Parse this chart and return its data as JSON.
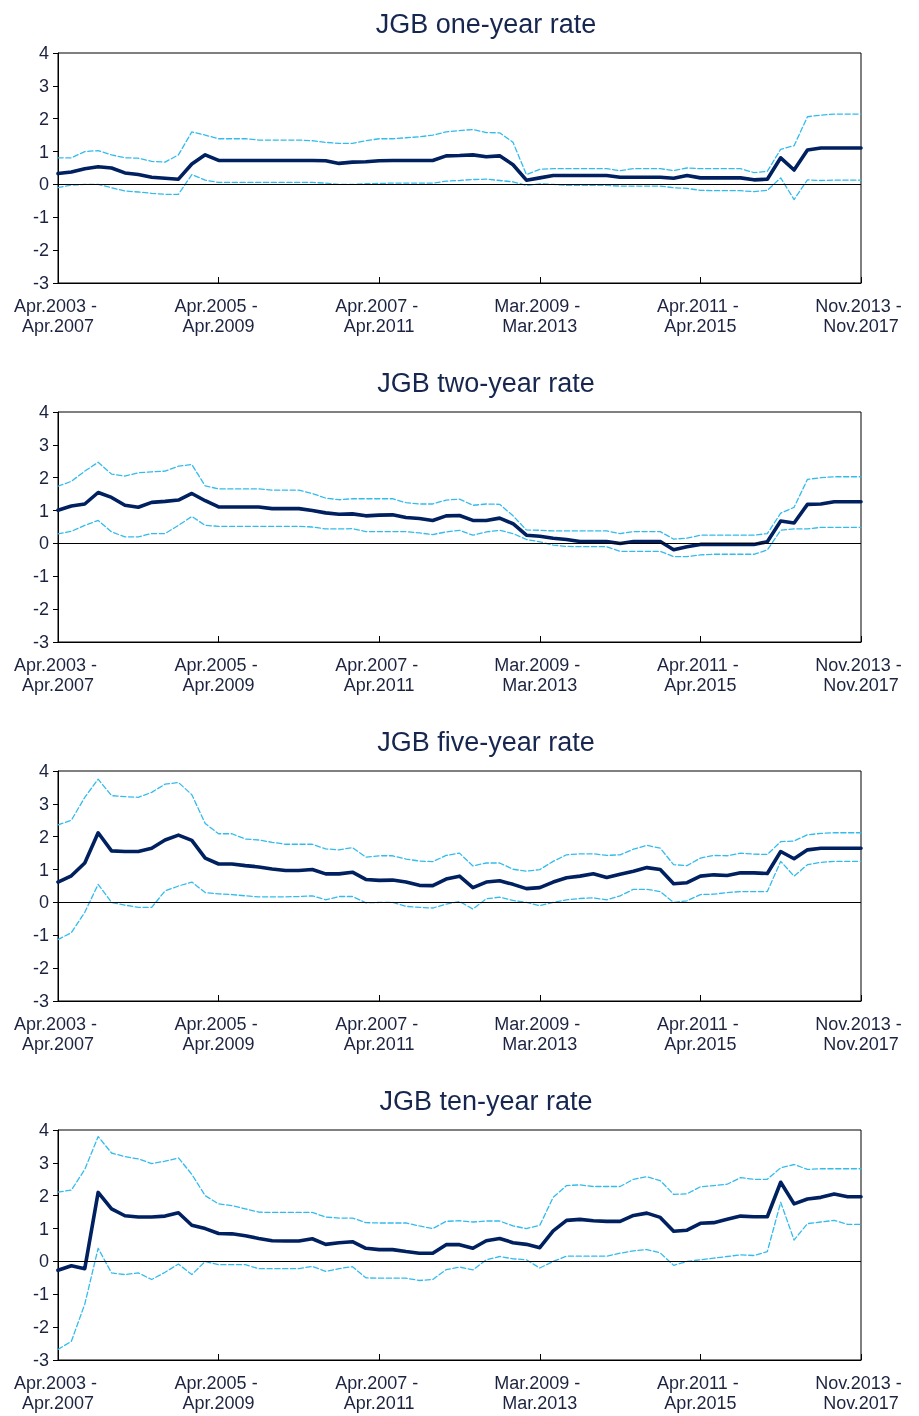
{
  "chart_data": [
    {
      "type": "line",
      "title": "JGB one-year rate",
      "categories": [
        "Apr.2003 - Apr.2007",
        null,
        null,
        null,
        null,
        null,
        null,
        null,
        null,
        null,
        null,
        null,
        "Apr.2005 - Apr.2009",
        null,
        null,
        null,
        null,
        null,
        null,
        null,
        null,
        null,
        null,
        null,
        "Apr.2007 - Apr.2011",
        null,
        null,
        null,
        null,
        null,
        null,
        null,
        null,
        null,
        null,
        null,
        "Mar.2009 - Mar.2013",
        null,
        null,
        null,
        null,
        null,
        null,
        null,
        null,
        null,
        null,
        null,
        "Apr.2011 - Apr.2015",
        null,
        null,
        null,
        null,
        null,
        null,
        null,
        null,
        null,
        null,
        null,
        "Nov.2013 - Nov.2017"
      ],
      "ylim": [
        -3,
        4
      ],
      "yticks": [
        -3,
        -2,
        -1,
        0,
        1,
        2,
        3,
        4
      ],
      "grid": false,
      "marker": "none",
      "line_style": "solid",
      "ref_lines": [
        {
          "axis": "y",
          "value": 0,
          "color": "#000000"
        }
      ],
      "series": [
        {
          "color": "#002060",
          "values": [
            0.33,
            0.38,
            0.48,
            0.54,
            0.5,
            0.35,
            0.3,
            0.22,
            0.19,
            0.16,
            0.62,
            0.9,
            0.73,
            0.73,
            0.73,
            0.73,
            0.73,
            0.73,
            0.73,
            0.73,
            0.72,
            0.64,
            0.68,
            0.69,
            0.72,
            0.73,
            0.73,
            0.73,
            0.73,
            0.87,
            0.88,
            0.9,
            0.84,
            0.87,
            0.6,
            0.13,
            0.2,
            0.27,
            0.27,
            0.27,
            0.27,
            0.27,
            0.22,
            0.22,
            0.22,
            0.22,
            0.19,
            0.27,
            0.2,
            0.2,
            0.2,
            0.2,
            0.14,
            0.16,
            0.81,
            0.44,
            1.05,
            1.11,
            1.11,
            1.11,
            1.11
          ]
        },
        {
          "color": "#33bbee",
          "line_style": "dashed",
          "values": [
            0.81,
            0.81,
            1.0,
            1.03,
            0.9,
            0.81,
            0.8,
            0.7,
            0.68,
            0.9,
            1.6,
            1.5,
            1.39,
            1.39,
            1.39,
            1.35,
            1.35,
            1.35,
            1.35,
            1.33,
            1.28,
            1.25,
            1.25,
            1.33,
            1.39,
            1.39,
            1.42,
            1.45,
            1.5,
            1.6,
            1.64,
            1.67,
            1.58,
            1.57,
            1.28,
            0.3,
            0.46,
            0.48,
            0.48,
            0.48,
            0.48,
            0.48,
            0.42,
            0.48,
            0.48,
            0.48,
            0.42,
            0.5,
            0.48,
            0.48,
            0.48,
            0.48,
            0.36,
            0.4,
            1.07,
            1.18,
            2.06,
            2.11,
            2.14,
            2.14,
            2.14
          ]
        },
        {
          "color": "#33bbee",
          "line_style": "dashed",
          "values": [
            -0.1,
            -0.02,
            0,
            0,
            -0.1,
            -0.2,
            -0.23,
            -0.27,
            -0.3,
            -0.3,
            0.3,
            0.13,
            0.06,
            0.06,
            0.06,
            0.06,
            0.06,
            0.06,
            0.06,
            0.06,
            0.04,
            0,
            0,
            0.02,
            0.03,
            0.04,
            0.04,
            0.04,
            0.04,
            0.1,
            0.12,
            0.15,
            0.16,
            0.12,
            0.08,
            -0.03,
            0.02,
            0,
            -0.03,
            -0.03,
            -0.03,
            -0.03,
            -0.05,
            -0.05,
            -0.05,
            -0.05,
            -0.1,
            -0.12,
            -0.18,
            -0.19,
            -0.19,
            -0.19,
            -0.22,
            -0.18,
            0.2,
            -0.46,
            0.14,
            0.12,
            0.13,
            0.13,
            0.13
          ]
        }
      ]
    },
    {
      "type": "line",
      "title": "JGB two-year rate",
      "categories": [
        "Apr.2003 - Apr.2007",
        null,
        null,
        null,
        null,
        null,
        null,
        null,
        null,
        null,
        null,
        null,
        "Apr.2005 - Apr.2009",
        null,
        null,
        null,
        null,
        null,
        null,
        null,
        null,
        null,
        null,
        null,
        "Apr.2007 - Apr.2011",
        null,
        null,
        null,
        null,
        null,
        null,
        null,
        null,
        null,
        null,
        null,
        "Mar.2009 - Mar.2013",
        null,
        null,
        null,
        null,
        null,
        null,
        null,
        null,
        null,
        null,
        null,
        "Apr.2011 - Apr.2015",
        null,
        null,
        null,
        null,
        null,
        null,
        null,
        null,
        null,
        null,
        null,
        "Nov.2013 - Nov.2017"
      ],
      "ylim": [
        -3,
        4
      ],
      "yticks": [
        -3,
        -2,
        -1,
        0,
        1,
        2,
        3,
        4
      ],
      "grid": false,
      "marker": "none",
      "line_style": "solid",
      "ref_lines": [
        {
          "axis": "y",
          "value": 0,
          "color": "#000000"
        }
      ],
      "series": [
        {
          "color": "#002060",
          "values": [
            1.01,
            1.14,
            1.2,
            1.55,
            1.4,
            1.16,
            1.1,
            1.25,
            1.28,
            1.32,
            1.52,
            1.3,
            1.11,
            1.11,
            1.11,
            1.11,
            1.06,
            1.06,
            1.06,
            1.0,
            0.93,
            0.89,
            0.9,
            0.84,
            0.86,
            0.87,
            0.79,
            0.76,
            0.7,
            0.84,
            0.85,
            0.7,
            0.7,
            0.77,
            0.6,
            0.25,
            0.22,
            0.16,
            0.12,
            0.06,
            0.06,
            0.06,
            0,
            0.06,
            0.06,
            0.06,
            -0.19,
            -0.1,
            -0.03,
            -0.03,
            -0.03,
            -0.03,
            -0.03,
            0.05,
            0.68,
            0.62,
            1.19,
            1.2,
            1.27,
            1.27,
            1.27
          ]
        },
        {
          "color": "#33bbee",
          "line_style": "dashed",
          "values": [
            1.74,
            1.89,
            2.2,
            2.47,
            2.11,
            2.05,
            2.15,
            2.18,
            2.2,
            2.35,
            2.4,
            1.75,
            1.66,
            1.66,
            1.66,
            1.66,
            1.62,
            1.62,
            1.62,
            1.52,
            1.38,
            1.33,
            1.36,
            1.36,
            1.36,
            1.36,
            1.24,
            1.2,
            1.2,
            1.32,
            1.35,
            1.16,
            1.2,
            1.19,
            0.84,
            0.41,
            0.4,
            0.38,
            0.38,
            0.38,
            0.38,
            0.38,
            0.3,
            0.36,
            0.36,
            0.36,
            0.13,
            0.16,
            0.25,
            0.25,
            0.25,
            0.25,
            0.25,
            0.3,
            0.92,
            1.1,
            1.95,
            2.0,
            2.03,
            2.03,
            2.03
          ]
        },
        {
          "color": "#33bbee",
          "line_style": "dashed",
          "values": [
            0.29,
            0.37,
            0.55,
            0.7,
            0.35,
            0.2,
            0.2,
            0.3,
            0.3,
            0.55,
            0.82,
            0.55,
            0.52,
            0.52,
            0.52,
            0.52,
            0.52,
            0.52,
            0.52,
            0.5,
            0.44,
            0.44,
            0.45,
            0.36,
            0.36,
            0.36,
            0.36,
            0.32,
            0.27,
            0.35,
            0.4,
            0.25,
            0.35,
            0.4,
            0.3,
            0.12,
            0.05,
            -0.05,
            -0.09,
            -0.1,
            -0.1,
            -0.1,
            -0.24,
            -0.24,
            -0.24,
            -0.24,
            -0.4,
            -0.4,
            -0.35,
            -0.33,
            -0.33,
            -0.33,
            -0.33,
            -0.2,
            0.4,
            0.44,
            0.44,
            0.49,
            0.49,
            0.49,
            0.49
          ]
        }
      ]
    },
    {
      "type": "line",
      "title": "JGB five-year rate",
      "categories": [
        "Apr.2003 - Apr.2007",
        null,
        null,
        null,
        null,
        null,
        null,
        null,
        null,
        null,
        null,
        null,
        "Apr.2005 - Apr.2009",
        null,
        null,
        null,
        null,
        null,
        null,
        null,
        null,
        null,
        null,
        null,
        "Apr.2007 - Apr.2011",
        null,
        null,
        null,
        null,
        null,
        null,
        null,
        null,
        null,
        null,
        null,
        "Mar.2009 - Mar.2013",
        null,
        null,
        null,
        null,
        null,
        null,
        null,
        null,
        null,
        null,
        null,
        "Apr.2011 - Apr.2015",
        null,
        null,
        null,
        null,
        null,
        null,
        null,
        null,
        null,
        null,
        null,
        "Nov.2013 - Nov.2017"
      ],
      "ylim": [
        -3,
        4
      ],
      "yticks": [
        -3,
        -2,
        -1,
        0,
        1,
        2,
        3,
        4
      ],
      "grid": false,
      "marker": "none",
      "line_style": "solid",
      "ref_lines": [
        {
          "axis": "y",
          "value": 0,
          "color": "#000000"
        }
      ],
      "series": [
        {
          "color": "#002060",
          "values": [
            0.62,
            0.81,
            1.2,
            2.12,
            1.57,
            1.55,
            1.55,
            1.65,
            1.9,
            2.05,
            1.89,
            1.35,
            1.17,
            1.17,
            1.12,
            1.08,
            1.02,
            0.97,
            0.97,
            1.0,
            0.87,
            0.87,
            0.92,
            0.7,
            0.67,
            0.68,
            0.62,
            0.52,
            0.51,
            0.71,
            0.8,
            0.45,
            0.62,
            0.66,
            0.55,
            0.42,
            0.45,
            0.62,
            0.75,
            0.8,
            0.87,
            0.76,
            0.86,
            0.95,
            1.06,
            1.0,
            0.57,
            0.6,
            0.8,
            0.84,
            0.82,
            0.9,
            0.9,
            0.88,
            1.55,
            1.33,
            1.6,
            1.65,
            1.65,
            1.65,
            1.65
          ]
        },
        {
          "color": "#33bbee",
          "line_style": "dashed",
          "values": [
            2.36,
            2.5,
            3.2,
            3.75,
            3.25,
            3.22,
            3.2,
            3.35,
            3.6,
            3.65,
            3.28,
            2.4,
            2.09,
            2.09,
            1.93,
            1.9,
            1.83,
            1.77,
            1.77,
            1.77,
            1.63,
            1.6,
            1.67,
            1.38,
            1.42,
            1.42,
            1.32,
            1.26,
            1.24,
            1.43,
            1.5,
            1.11,
            1.2,
            1.2,
            1.01,
            0.95,
            1.0,
            1.25,
            1.45,
            1.48,
            1.48,
            1.43,
            1.45,
            1.62,
            1.74,
            1.65,
            1.15,
            1.12,
            1.35,
            1.43,
            1.42,
            1.5,
            1.47,
            1.46,
            1.85,
            1.87,
            2.06,
            2.1,
            2.12,
            2.12,
            2.12
          ]
        },
        {
          "color": "#33bbee",
          "line_style": "dashed",
          "values": [
            -1.13,
            -0.92,
            -0.3,
            0.55,
            0,
            -0.08,
            -0.15,
            -0.15,
            0.35,
            0.5,
            0.62,
            0.3,
            0.26,
            0.24,
            0.2,
            0.17,
            0.17,
            0.17,
            0.18,
            0.2,
            0.08,
            0.18,
            0.18,
            -0.01,
            0,
            0,
            -0.12,
            -0.15,
            -0.17,
            -0.05,
            0.03,
            -0.2,
            0.11,
            0.16,
            0.06,
            0,
            -0.1,
            0,
            0.08,
            0.12,
            0.14,
            0.08,
            0.2,
            0.4,
            0.4,
            0.33,
            0,
            0.05,
            0.24,
            0.25,
            0.3,
            0.33,
            0.33,
            0.33,
            1.25,
            0.8,
            1.15,
            1.22,
            1.25,
            1.25,
            1.25
          ]
        }
      ]
    },
    {
      "type": "line",
      "title": "JGB ten-year rate",
      "categories": [
        "Apr.2003 - Apr.2007",
        null,
        null,
        null,
        null,
        null,
        null,
        null,
        null,
        null,
        null,
        null,
        "Apr.2005 - Apr.2009",
        null,
        null,
        null,
        null,
        null,
        null,
        null,
        null,
        null,
        null,
        null,
        "Apr.2007 - Apr.2011",
        null,
        null,
        null,
        null,
        null,
        null,
        null,
        null,
        null,
        null,
        null,
        "Mar.2009 - Mar.2013",
        null,
        null,
        null,
        null,
        null,
        null,
        null,
        null,
        null,
        null,
        null,
        "Apr.2011 - Apr.2015",
        null,
        null,
        null,
        null,
        null,
        null,
        null,
        null,
        null,
        null,
        null,
        "Nov.2013 - Nov.2017"
      ],
      "ylim": [
        -3,
        4
      ],
      "yticks": [
        -3,
        -2,
        -1,
        0,
        1,
        2,
        3,
        4
      ],
      "grid": false,
      "marker": "none",
      "line_style": "solid",
      "ref_lines": [
        {
          "axis": "y",
          "value": 0,
          "color": "#000000"
        }
      ],
      "series": [
        {
          "color": "#002060",
          "values": [
            -0.27,
            -0.13,
            -0.22,
            2.1,
            1.6,
            1.39,
            1.35,
            1.35,
            1.38,
            1.48,
            1.1,
            1.0,
            0.85,
            0.84,
            0.78,
            0.7,
            0.63,
            0.62,
            0.62,
            0.69,
            0.52,
            0.57,
            0.6,
            0.4,
            0.36,
            0.36,
            0.3,
            0.25,
            0.25,
            0.51,
            0.51,
            0.4,
            0.63,
            0.7,
            0.57,
            0.52,
            0.42,
            0.93,
            1.25,
            1.28,
            1.24,
            1.22,
            1.22,
            1.4,
            1.47,
            1.34,
            0.92,
            0.95,
            1.16,
            1.18,
            1.28,
            1.38,
            1.36,
            1.36,
            2.41,
            1.75,
            1.9,
            1.95,
            2.05,
            1.97,
            1.97
          ]
        },
        {
          "color": "#33bbee",
          "line_style": "dashed",
          "values": [
            2.11,
            2.17,
            2.8,
            3.8,
            3.3,
            3.19,
            3.12,
            2.98,
            3.05,
            3.15,
            2.65,
            2.0,
            1.75,
            1.7,
            1.6,
            1.5,
            1.49,
            1.49,
            1.49,
            1.49,
            1.35,
            1.32,
            1.32,
            1.18,
            1.17,
            1.17,
            1.17,
            1.08,
            1.0,
            1.22,
            1.24,
            1.2,
            1.23,
            1.23,
            1.08,
            1.0,
            1.1,
            1.95,
            2.31,
            2.33,
            2.28,
            2.28,
            2.28,
            2.5,
            2.58,
            2.46,
            2.04,
            2.06,
            2.27,
            2.31,
            2.35,
            2.55,
            2.5,
            2.5,
            2.85,
            2.95,
            2.8,
            2.82,
            2.82,
            2.82,
            2.82
          ]
        },
        {
          "color": "#33bbee",
          "line_style": "dashed",
          "values": [
            -2.68,
            -2.43,
            -1.3,
            0.4,
            -0.35,
            -0.4,
            -0.35,
            -0.55,
            -0.33,
            -0.08,
            -0.4,
            0,
            -0.1,
            -0.1,
            -0.1,
            -0.22,
            -0.22,
            -0.22,
            -0.22,
            -0.15,
            -0.3,
            -0.22,
            -0.16,
            -0.5,
            -0.51,
            -0.51,
            -0.51,
            -0.58,
            -0.55,
            -0.25,
            -0.17,
            -0.26,
            0.05,
            0.15,
            0.08,
            0.05,
            -0.2,
            0,
            0.16,
            0.16,
            0.16,
            0.16,
            0.25,
            0.32,
            0.36,
            0.26,
            -0.12,
            0,
            0.05,
            0.1,
            0.15,
            0.2,
            0.18,
            0.3,
            1.8,
            0.65,
            1.15,
            1.2,
            1.25,
            1.13,
            1.13
          ]
        }
      ]
    }
  ]
}
